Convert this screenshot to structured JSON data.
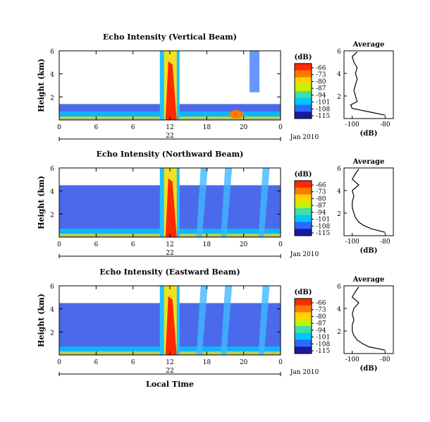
{
  "colorbar": {
    "unit_label": "(dB)",
    "ticks": [
      "-66",
      "-73",
      "-80",
      "-87",
      "-94",
      "-101",
      "-108",
      "-115"
    ],
    "colors": [
      "#ff2a00",
      "#ff7a00",
      "#ffd200",
      "#c8f000",
      "#40e0a0",
      "#00c8ff",
      "#2a6aff",
      "#1a1aa0"
    ]
  },
  "x_axis": {
    "ticks": [
      "0",
      "6",
      "6",
      "12",
      "18",
      "20",
      "0"
    ],
    "day_label": "22",
    "month_label": "Jan 2010",
    "title": "Local Time"
  },
  "y_axis": {
    "label": "Height (km)",
    "ticks": [
      "6",
      "4",
      "2"
    ]
  },
  "avg_panel": {
    "title": "Average",
    "xlabel": "(dB)",
    "xticks": [
      "-100",
      "-80"
    ],
    "yticks": [
      "6",
      "4",
      "2"
    ]
  },
  "chart_data": [
    {
      "type": "heatmap",
      "title": "Echo Intensity (Vertical Beam)",
      "ylabel": "Height (km)",
      "zlabel": "(dB)",
      "zlim": [
        -115,
        -66
      ],
      "ylim": [
        0,
        6
      ],
      "average_profile": {
        "xlabel": "(dB)",
        "xlim": [
          -105,
          -75
        ],
        "height": [
          0.3,
          0.6,
          0.9,
          1.2,
          1.5,
          2.0,
          2.5,
          3.0,
          3.5,
          4.0,
          4.5,
          5.0,
          5.5,
          5.9
        ],
        "db": [
          -80,
          -90,
          -100,
          -101,
          -97,
          -98,
          -99,
          -98,
          -97,
          -98,
          -97,
          -99,
          -100,
          -97
        ]
      }
    },
    {
      "type": "heatmap",
      "title": "Echo Intensity (Northward Beam)",
      "ylabel": "Height (km)",
      "zlabel": "(dB)",
      "zlim": [
        -115,
        -66
      ],
      "ylim": [
        0,
        6
      ],
      "average_profile": {
        "xlabel": "(dB)",
        "xlim": [
          -105,
          -75
        ],
        "height": [
          0.3,
          0.6,
          0.9,
          1.2,
          1.6,
          2.0,
          2.5,
          3.0,
          3.5,
          4.0,
          4.5,
          5.0,
          5.5,
          5.9
        ],
        "db": [
          -80,
          -88,
          -93,
          -96,
          -98,
          -99,
          -100,
          -100,
          -99,
          -100,
          -96,
          -100,
          -98,
          -96
        ]
      }
    },
    {
      "type": "heatmap",
      "title": "Echo Intensity (Eastward Beam)",
      "ylabel": "Height (km)",
      "zlabel": "(dB)",
      "zlim": [
        -115,
        -66
      ],
      "ylim": [
        0,
        6
      ],
      "average_profile": {
        "xlabel": "(dB)",
        "xlim": [
          -105,
          -75
        ],
        "height": [
          0.3,
          0.6,
          0.9,
          1.2,
          1.6,
          2.0,
          2.5,
          3.0,
          3.5,
          4.0,
          4.5,
          5.0,
          5.5,
          5.9
        ],
        "db": [
          -80,
          -90,
          -94,
          -97,
          -99,
          -100,
          -100,
          -99,
          -100,
          -99,
          -96,
          -100,
          -98,
          -96
        ]
      }
    }
  ]
}
